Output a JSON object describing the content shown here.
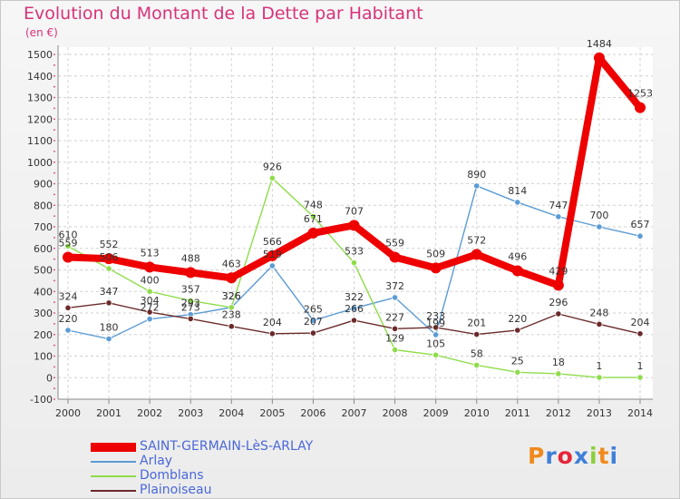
{
  "title": "Evolution du Montant de la Dette par Habitant",
  "unit_label": "(en €)",
  "logo_text": "Proxiti",
  "chart_data": {
    "type": "line",
    "title": "Evolution du Montant de la Dette par Habitant",
    "ylabel": "(en €)",
    "xlabel": "",
    "ylim": [
      -100,
      1500
    ],
    "yticks": [
      -100,
      0,
      100,
      200,
      300,
      400,
      500,
      600,
      700,
      800,
      900,
      1000,
      1100,
      1200,
      1300,
      1400,
      1500
    ],
    "grid": true,
    "legend_position": "bottom-left",
    "categories": [
      "2000",
      "2001",
      "2002",
      "2003",
      "2004",
      "2005",
      "2006",
      "2007",
      "2008",
      "2009",
      "2010",
      "2011",
      "2012",
      "2013",
      "2014"
    ],
    "series": [
      {
        "name": "SAINT-GERMAIN-LèS-ARLAY",
        "color": "#ee0000",
        "emphasis": true,
        "values": [
          559,
          552,
          513,
          488,
          463,
          566,
          671,
          707,
          559,
          509,
          572,
          496,
          429,
          1484,
          1253
        ]
      },
      {
        "name": "Arlay",
        "color": "#5b9bd5",
        "values": [
          220,
          180,
          272,
          293,
          326,
          519,
          265,
          322,
          372,
          199,
          890,
          814,
          747,
          700,
          657
        ]
      },
      {
        "name": "Domblans",
        "color": "#8fdc4b",
        "values": [
          610,
          506,
          400,
          357,
          326,
          926,
          748,
          533,
          129,
          105,
          58,
          25,
          18,
          1,
          1
        ]
      },
      {
        "name": "Plainoiseau",
        "color": "#6b2a2a",
        "values": [
          324,
          347,
          304,
          273,
          238,
          204,
          207,
          266,
          227,
          233,
          201,
          220,
          296,
          248,
          204
        ]
      }
    ]
  }
}
